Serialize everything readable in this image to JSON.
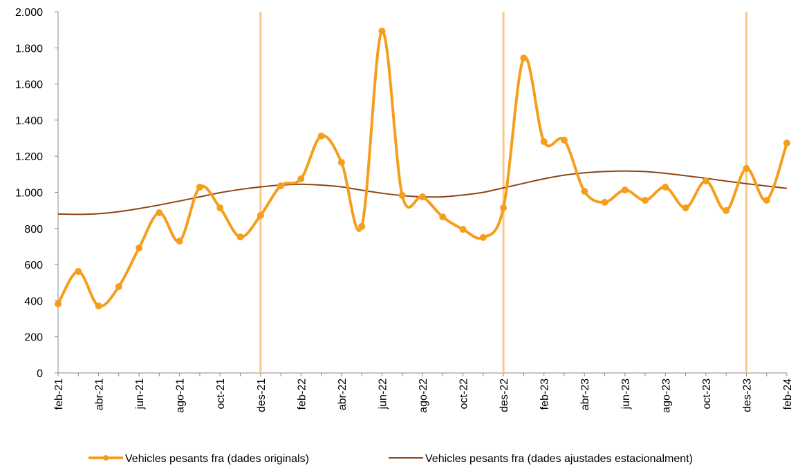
{
  "chart_data": {
    "type": "line",
    "categories": [
      "feb-21",
      null,
      "abr-21",
      null,
      "jun-21",
      null,
      "ago-21",
      null,
      "oct-21",
      null,
      "des-21",
      null,
      "feb-22",
      null,
      "abr-22",
      null,
      "jun-22",
      null,
      "ago-22",
      null,
      "oct-22",
      null,
      "des-22",
      null,
      "feb-23",
      null,
      "abr-23",
      null,
      "jun-23",
      null,
      "ago-23",
      null,
      "oct-23",
      null,
      "des-23",
      null,
      "feb-24"
    ],
    "series": [
      {
        "name": "Vehicles pesants fra (dades originals)",
        "color": "#f59e1c",
        "markers": true,
        "values": [
          382,
          562,
          371,
          478,
          692,
          887,
          730,
          1029,
          914,
          753,
          872,
          1036,
          1075,
          1312,
          1166,
          811,
          1893,
          983,
          975,
          864,
          795,
          750,
          914,
          1744,
          1281,
          1289,
          1006,
          945,
          1013,
          956,
          1029,
          914,
          1063,
          899,
          1132,
          956,
          1273
        ]
      },
      {
        "name": "Vehicles pesants fra (dades ajustades estacionalment)",
        "color": "#8b4513",
        "markers": false,
        "values": [
          880,
          878,
          882,
          893,
          910,
          930,
          952,
          975,
          998,
          1016,
          1030,
          1040,
          1045,
          1040,
          1030,
          1012,
          995,
          982,
          975,
          975,
          985,
          1000,
          1025,
          1050,
          1075,
          1095,
          1108,
          1115,
          1118,
          1115,
          1105,
          1092,
          1078,
          1062,
          1048,
          1035,
          1022
        ]
      }
    ],
    "vlines": [
      10,
      22,
      34
    ],
    "vline_color": "#f7c98a",
    "ylim": [
      0,
      2000
    ],
    "yticks": [
      0,
      200,
      400,
      600,
      800,
      {
        "value": 1000,
        "label": "1.000"
      },
      {
        "value": 1200,
        "label": "1.200"
      },
      {
        "value": 1400,
        "label": "1.400"
      },
      {
        "value": 1600,
        "label": "1.600"
      },
      {
        "value": 1800,
        "label": "1.800"
      },
      {
        "value": 2000,
        "label": "2.000"
      }
    ],
    "legend": "bottom"
  }
}
